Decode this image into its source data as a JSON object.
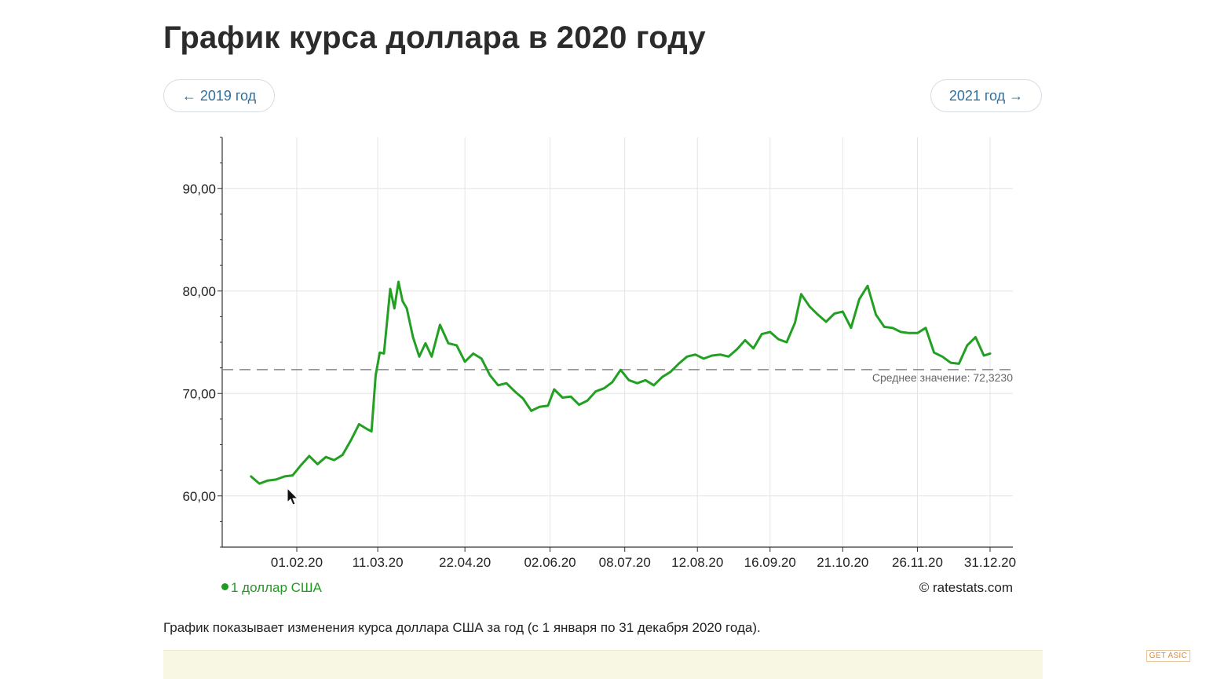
{
  "page": {
    "title": "График курса доллара в 2020 году",
    "prev_label": "← 2019 год",
    "next_label": "2021 год →",
    "legend_label": "1 доллар США",
    "source_label": "© ratestats.com",
    "description": "График показывает изменения курса доллара США за год (с 1 января по 31 декабря 2020 года).",
    "watermark": "GET ASIC"
  },
  "colors": {
    "series": "#23a023",
    "average_line": "#888888",
    "grid": "#e4e4e4",
    "axis": "#333333"
  },
  "chart_data": {
    "type": "line",
    "title": "",
    "xlabel": "",
    "ylabel": "",
    "x_range": [
      "2020-01-01",
      "2020-12-31"
    ],
    "ylim": [
      55,
      95
    ],
    "yticks": [
      60,
      70,
      80,
      90
    ],
    "ytick_labels": [
      "60,00",
      "70,00",
      "80,00",
      "90,00"
    ],
    "xticks": [
      "2020-02-01",
      "2020-03-11",
      "2020-04-22",
      "2020-06-02",
      "2020-07-08",
      "2020-08-12",
      "2020-09-16",
      "2020-10-21",
      "2020-11-26",
      "2020-12-31"
    ],
    "xtick_labels": [
      "01.02.20",
      "11.03.20",
      "22.04.20",
      "02.06.20",
      "08.07.20",
      "12.08.20",
      "16.09.20",
      "21.10.20",
      "26.11.20",
      "31.12.20"
    ],
    "grid": true,
    "legend_position": "bottom-left",
    "average": {
      "value": 72.323,
      "label": "Среднее значение: 72,3230"
    },
    "series": [
      {
        "name": "1 доллар США",
        "x": [
          "2020-01-10",
          "2020-01-14",
          "2020-01-18",
          "2020-01-22",
          "2020-01-26",
          "2020-01-30",
          "2020-02-03",
          "2020-02-07",
          "2020-02-11",
          "2020-02-15",
          "2020-02-19",
          "2020-02-23",
          "2020-02-27",
          "2020-03-02",
          "2020-03-06",
          "2020-03-08",
          "2020-03-10",
          "2020-03-12",
          "2020-03-14",
          "2020-03-17",
          "2020-03-19",
          "2020-03-21",
          "2020-03-23",
          "2020-03-25",
          "2020-03-28",
          "2020-03-31",
          "2020-04-03",
          "2020-04-06",
          "2020-04-10",
          "2020-04-14",
          "2020-04-18",
          "2020-04-22",
          "2020-04-26",
          "2020-04-30",
          "2020-05-04",
          "2020-05-08",
          "2020-05-12",
          "2020-05-16",
          "2020-05-20",
          "2020-05-24",
          "2020-05-28",
          "2020-06-01",
          "2020-06-04",
          "2020-06-08",
          "2020-06-12",
          "2020-06-16",
          "2020-06-20",
          "2020-06-24",
          "2020-06-28",
          "2020-07-02",
          "2020-07-06",
          "2020-07-10",
          "2020-07-14",
          "2020-07-18",
          "2020-07-22",
          "2020-07-26",
          "2020-07-30",
          "2020-08-03",
          "2020-08-07",
          "2020-08-11",
          "2020-08-15",
          "2020-08-19",
          "2020-08-23",
          "2020-08-27",
          "2020-08-31",
          "2020-09-04",
          "2020-09-08",
          "2020-09-12",
          "2020-09-16",
          "2020-09-20",
          "2020-09-24",
          "2020-09-28",
          "2020-10-01",
          "2020-10-05",
          "2020-10-09",
          "2020-10-13",
          "2020-10-17",
          "2020-10-21",
          "2020-10-25",
          "2020-10-29",
          "2020-11-02",
          "2020-11-06",
          "2020-11-10",
          "2020-11-14",
          "2020-11-18",
          "2020-11-22",
          "2020-11-26",
          "2020-11-30",
          "2020-12-04",
          "2020-12-08",
          "2020-12-12",
          "2020-12-16",
          "2020-12-20",
          "2020-12-24",
          "2020-12-28",
          "2020-12-31"
        ],
        "y": [
          61.9,
          61.2,
          61.5,
          61.6,
          61.9,
          62.0,
          63.0,
          63.9,
          63.1,
          63.8,
          63.5,
          64.0,
          65.4,
          67.0,
          66.5,
          66.3,
          71.8,
          74.0,
          73.9,
          80.2,
          78.3,
          80.9,
          79.0,
          78.3,
          75.5,
          73.6,
          74.9,
          73.6,
          76.7,
          74.9,
          74.7,
          73.1,
          73.9,
          73.4,
          71.8,
          70.8,
          71.0,
          70.2,
          69.5,
          68.3,
          68.7,
          68.8,
          70.4,
          69.6,
          69.7,
          68.9,
          69.3,
          70.2,
          70.5,
          71.1,
          72.3,
          71.3,
          71.0,
          71.3,
          70.8,
          71.6,
          72.1,
          72.9,
          73.6,
          73.8,
          73.4,
          73.7,
          73.8,
          73.6,
          74.3,
          75.2,
          74.4,
          75.8,
          76.0,
          75.3,
          75.0,
          76.9,
          79.7,
          78.5,
          77.7,
          77.0,
          77.8,
          78.0,
          76.4,
          79.2,
          80.5,
          77.7,
          76.5,
          76.4,
          76.0,
          75.9,
          75.9,
          76.4,
          74.0,
          73.6,
          73.0,
          72.9,
          74.7,
          75.5,
          73.7,
          73.9
        ]
      }
    ]
  }
}
